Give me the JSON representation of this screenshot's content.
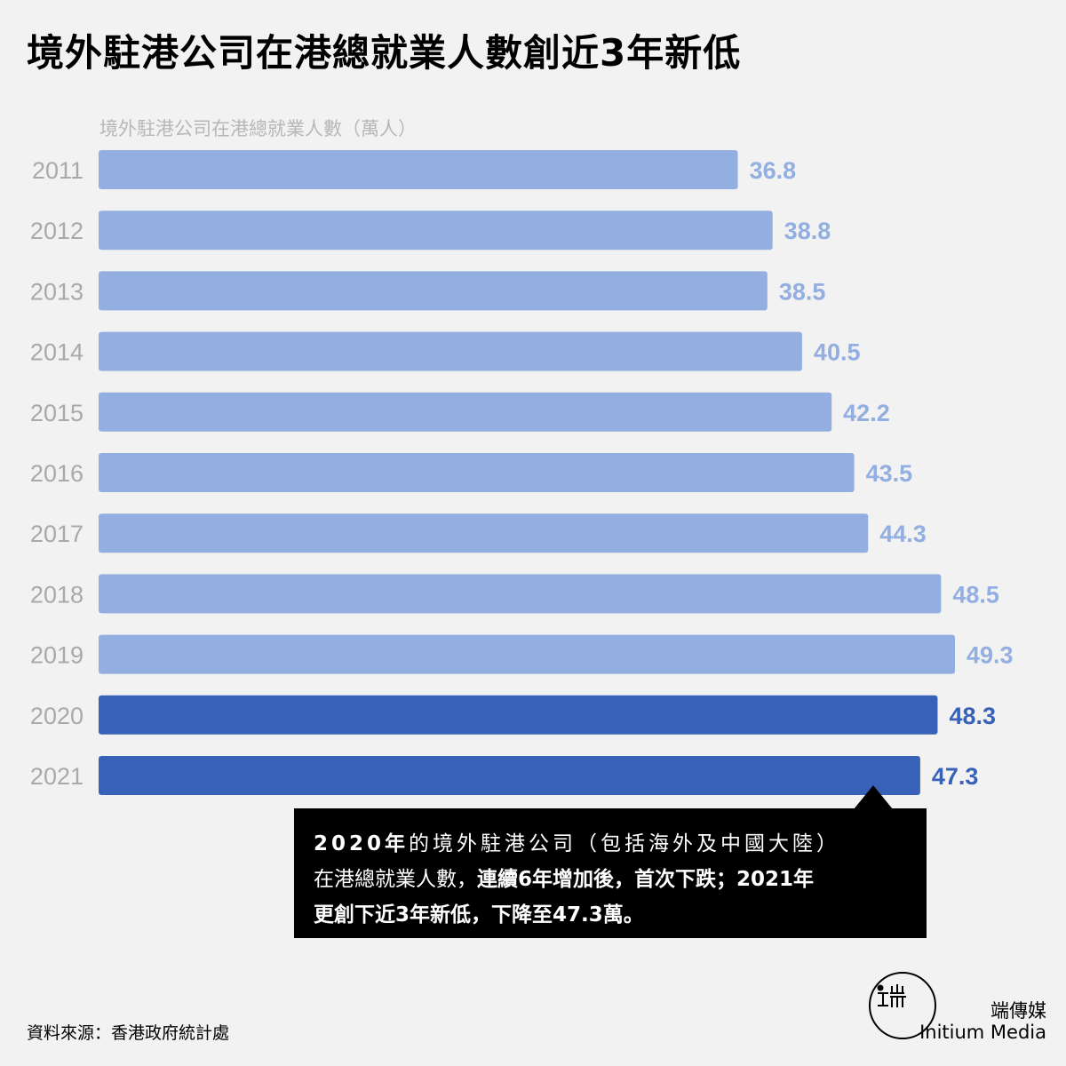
{
  "title": "境外駐港公司在港總就業人數創近3年新低",
  "source": "資料來源：香港政府統計處",
  "callout": {
    "line1_bold": "2020年",
    "line1_rest": "的境外駐港公司（包括海外及中國大陸）",
    "line2_plain": "在港總就業人數，",
    "line2_bold": "連續6年增加後，首次下跌；2021年",
    "line3_bold": "更創下近3年新低，下降至47.3萬。"
  },
  "brand": {
    "name_zh": "端傳媒",
    "name_en": "Initium Media",
    "logo_icon": "initium-logo-icon"
  },
  "colors": {
    "light_bar": "#93aee0",
    "dark_bar": "#3762b7",
    "light_label": "#93aee0",
    "dark_label": "#3762b7",
    "year_text": "#a9a9a9",
    "subtitle_text": "#b7b7b7"
  },
  "chart_data": {
    "type": "bar",
    "orientation": "horizontal",
    "subtitle": "境外駐港公司在港總就業人數（萬人）",
    "categories": [
      "2011",
      "2012",
      "2013",
      "2014",
      "2015",
      "2016",
      "2017",
      "2018",
      "2019",
      "2020",
      "2021"
    ],
    "values": [
      36.8,
      38.8,
      38.5,
      40.5,
      42.2,
      43.5,
      44.3,
      48.5,
      49.3,
      48.3,
      47.3
    ],
    "value_labels": [
      "36.8",
      "38.8",
      "38.5",
      "40.5",
      "42.2",
      "43.5",
      "44.3",
      "48.5",
      "49.3",
      "48.3",
      "47.3"
    ],
    "highlighted": [
      false,
      false,
      false,
      false,
      false,
      false,
      false,
      false,
      false,
      true,
      true
    ],
    "xlim": [
      0,
      49.3
    ],
    "grid": false,
    "legend": "none"
  }
}
